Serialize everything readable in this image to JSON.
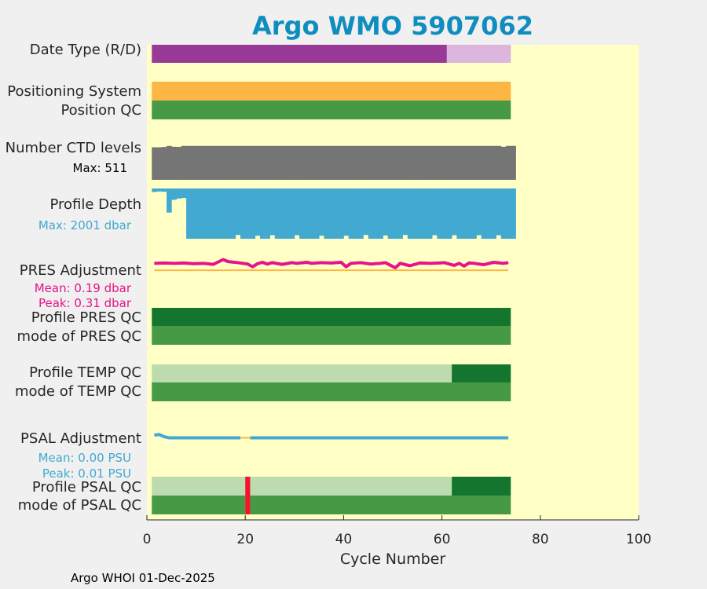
{
  "chart_data": {
    "type": "bar",
    "title": "Argo WMO 5907062",
    "xlabel": "Cycle Number",
    "xlim": [
      0,
      100
    ],
    "xticks": [
      0,
      20,
      40,
      60,
      80,
      100
    ],
    "grid": false,
    "n_cycles": 74,
    "colors": {
      "title": "#0f8dbf",
      "background": "#ffffc6",
      "delayed_mode": "#993a99",
      "realtime_mode": "#dcb6dc",
      "positioning": "#fdb643",
      "qc_good": "#469a46",
      "qc_dark": "#14762e",
      "qc_light": "#bddbaf",
      "qc_bad": "#f2142c",
      "ctd": "#757575",
      "depth": "#42a9d1",
      "pres": "#e51489",
      "psal": "#42a9d1",
      "zero_line": "#fdb643"
    },
    "rows": [
      {
        "label": "Date Type (R/D)",
        "segments": [
          {
            "from": 0.5,
            "to": 60.5,
            "color": "delayed_mode"
          },
          {
            "from": 60.5,
            "to": 73.5,
            "color": "realtime_mode"
          }
        ]
      },
      {
        "label": "Positioning System",
        "segments": [
          {
            "from": 0.5,
            "to": 73.5,
            "color": "positioning"
          }
        ]
      },
      {
        "label": "Position QC",
        "segments": [
          {
            "from": 0.5,
            "to": 73.5,
            "color": "qc_good"
          }
        ]
      },
      {
        "label": "Number CTD levels",
        "sublabel": "Max: 511"
      },
      {
        "label": "Profile Depth",
        "sublabel": "Max: 2001 dbar"
      },
      {
        "label": "PRES Adjustment",
        "sublabel": "Mean: 0.19 dbar",
        "sublabel2": "Peak: 0.31 dbar"
      },
      {
        "label": "Profile PRES QC",
        "segments": [
          {
            "from": 0.5,
            "to": 73.5,
            "color": "qc_dark"
          }
        ]
      },
      {
        "label": "mode of PRES QC",
        "segments": [
          {
            "from": 0.5,
            "to": 73.5,
            "color": "qc_good"
          }
        ]
      },
      {
        "label": "Profile TEMP QC",
        "segments": [
          {
            "from": 0.5,
            "to": 61.5,
            "color": "qc_light"
          },
          {
            "from": 61.5,
            "to": 73.5,
            "color": "qc_dark"
          }
        ]
      },
      {
        "label": "mode of TEMP QC",
        "segments": [
          {
            "from": 0.5,
            "to": 73.5,
            "color": "qc_good"
          }
        ]
      },
      {
        "label": "PSAL Adjustment",
        "sublabel": "Mean: 0.00 PSU",
        "sublabel2": "Peak: 0.01 PSU"
      },
      {
        "label": "Profile PSAL QC",
        "segments": [
          {
            "from": 0.5,
            "to": 19.5,
            "color": "qc_light"
          },
          {
            "from": 19.5,
            "to": 20.5,
            "color": "qc_bad"
          },
          {
            "from": 20.5,
            "to": 61.5,
            "color": "qc_light"
          },
          {
            "from": 61.5,
            "to": 73.5,
            "color": "qc_dark"
          }
        ]
      },
      {
        "label": "mode of PSAL QC",
        "segments": [
          {
            "from": 0.5,
            "to": 19.5,
            "color": "qc_good"
          },
          {
            "from": 19.5,
            "to": 20.5,
            "color": "qc_bad"
          },
          {
            "from": 20.5,
            "to": 73.5,
            "color": "qc_good"
          }
        ]
      }
    ],
    "ctd_levels": {
      "max": 511,
      "ymax": 520,
      "gaps": [
        [
          1,
          490
        ],
        [
          2,
          490
        ],
        [
          3,
          495
        ],
        [
          5,
          498
        ],
        [
          6,
          496
        ],
        [
          72,
          498
        ]
      ],
      "default": 511
    },
    "profile_depth": {
      "max": 2001,
      "ymax": 2001,
      "default": 2001,
      "gaps": [
        [
          1,
          140
        ],
        [
          2,
          120
        ],
        [
          3,
          130
        ],
        [
          4,
          960
        ],
        [
          5,
          450
        ],
        [
          6,
          400
        ],
        [
          7,
          380
        ],
        [
          18,
          1850
        ],
        [
          22,
          1880
        ],
        [
          25,
          1860
        ],
        [
          30,
          1860
        ],
        [
          35,
          1880
        ],
        [
          40,
          1880
        ],
        [
          44,
          1850
        ],
        [
          48,
          1870
        ],
        [
          52,
          1850
        ],
        [
          58,
          1860
        ],
        [
          62,
          1860
        ],
        [
          67,
          1860
        ],
        [
          71,
          1860
        ]
      ]
    },
    "pres_adjustment": {
      "mean": 0.19,
      "peak": 0.31,
      "unit": "dbar",
      "x": [
        1,
        3,
        5,
        7,
        9,
        11,
        13,
        15,
        16,
        18,
        20,
        21,
        22,
        23,
        24,
        25,
        27,
        29,
        30,
        32,
        33,
        35,
        37,
        39,
        40,
        41,
        43,
        45,
        47,
        48,
        50,
        51,
        53,
        55,
        57,
        59,
        60,
        62,
        63,
        64,
        65,
        66,
        68,
        70,
        72,
        73
      ],
      "y": [
        0.2,
        0.21,
        0.2,
        0.21,
        0.19,
        0.2,
        0.17,
        0.31,
        0.25,
        0.22,
        0.18,
        0.1,
        0.19,
        0.23,
        0.18,
        0.22,
        0.17,
        0.22,
        0.2,
        0.23,
        0.2,
        0.22,
        0.21,
        0.23,
        0.1,
        0.2,
        0.22,
        0.18,
        0.2,
        0.22,
        0.07,
        0.2,
        0.13,
        0.21,
        0.2,
        0.21,
        0.22,
        0.14,
        0.2,
        0.12,
        0.21,
        0.2,
        0.16,
        0.23,
        0.2,
        0.22
      ],
      "ylim": [
        -0.25,
        0.55
      ]
    },
    "psal_adjustment": {
      "mean": 0.0,
      "peak": 0.01,
      "unit": "PSU",
      "x": [
        1,
        2,
        3,
        4,
        5,
        18.5,
        20.5,
        73
      ],
      "y": [
        0.01,
        0.012,
        0.004,
        0.0,
        0.0,
        0.0,
        0.0,
        0.0
      ],
      "gap": [
        18.5,
        20.5
      ],
      "ylim": [
        -0.05,
        0.05
      ]
    },
    "footer": "Argo WHOI 01-Dec-2025"
  }
}
